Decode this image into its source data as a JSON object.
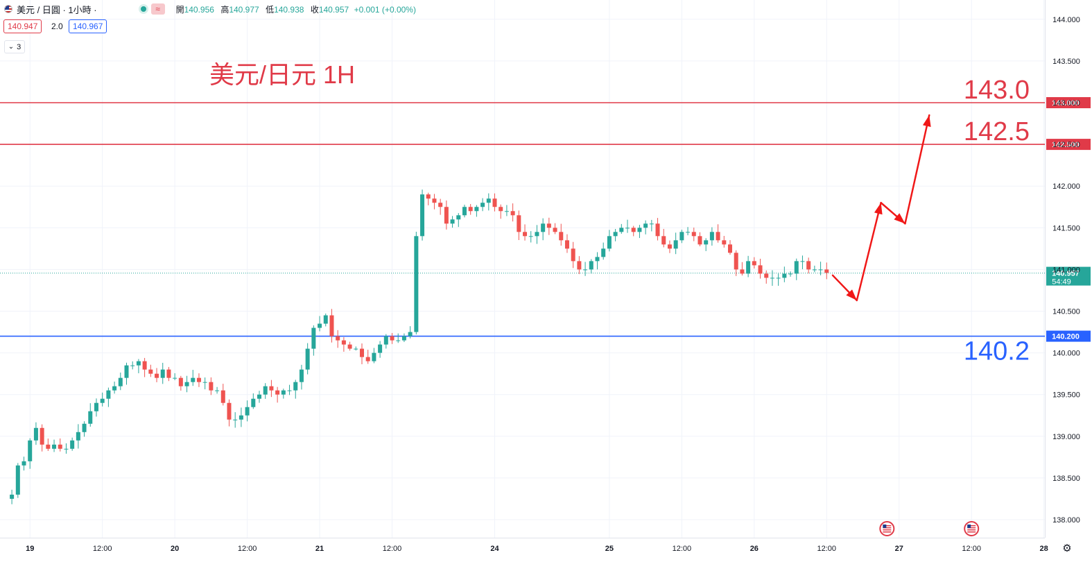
{
  "header": {
    "symbol": "美元 / 日圓 · 1小時 ·",
    "tilde": "≈",
    "ohlc": {
      "open_label": "開",
      "open": "140.956",
      "high_label": "高",
      "high": "140.977",
      "low_label": "低",
      "low": "140.938",
      "close_label": "收",
      "close": "140.957",
      "change": "+0.001 (+0.00%)"
    },
    "bid": "140.947",
    "spread": "2.0",
    "ask": "140.967",
    "indicator_count": "3",
    "chevron": "⌄"
  },
  "colors": {
    "up": "#26a69a",
    "down": "#ef5350",
    "resistance": "#e03a48",
    "support": "#2962ff",
    "arrow": "#f01818",
    "grid": "#f0f3fa"
  },
  "icons": {
    "flag": "us-flag-icon",
    "settings": "gear-icon"
  },
  "chart_data": {
    "type": "candlestick",
    "title": "美元/日元 1H",
    "ylim": [
      137.85,
      144.05
    ],
    "yticks": [
      "144.000",
      "143.500",
      "143.000",
      "142.500",
      "142.000",
      "141.500",
      "141.000",
      "140.500",
      "140.000",
      "139.500",
      "139.000",
      "138.500",
      "138.000"
    ],
    "x_labels": [
      {
        "label": "19",
        "bar": 4
      },
      {
        "label": "12:00",
        "bar": 16
      },
      {
        "label": "20",
        "bar": 28
      },
      {
        "label": "12:00",
        "bar": 40
      },
      {
        "label": "21",
        "bar": 52
      },
      {
        "label": "12:00",
        "bar": 64
      },
      {
        "label": "24",
        "bar": 81
      },
      {
        "label": "25",
        "bar": 100
      },
      {
        "label": "12:00",
        "bar": 112
      },
      {
        "label": "26",
        "bar": 124
      },
      {
        "label": "12:00",
        "bar": 136
      },
      {
        "label": "27",
        "bar": 148
      },
      {
        "label": "12:00",
        "bar": 160
      },
      {
        "label": "28",
        "bar": 172
      }
    ],
    "anchors": [
      [
        0,
        138.25
      ],
      [
        1,
        138.3
      ],
      [
        2,
        138.65
      ],
      [
        3,
        138.7
      ],
      [
        4,
        138.95
      ],
      [
        5,
        139.1
      ],
      [
        6,
        138.9
      ],
      [
        7,
        138.85
      ],
      [
        8,
        138.9
      ],
      [
        9,
        138.85
      ],
      [
        10,
        138.85
      ],
      [
        11,
        138.95
      ],
      [
        12,
        139.05
      ],
      [
        13,
        139.15
      ],
      [
        14,
        139.3
      ],
      [
        15,
        139.4
      ],
      [
        16,
        139.45
      ],
      [
        17,
        139.55
      ],
      [
        18,
        139.6
      ],
      [
        19,
        139.7
      ],
      [
        20,
        139.85
      ],
      [
        21,
        139.85
      ],
      [
        22,
        139.9
      ],
      [
        23,
        139.8
      ],
      [
        24,
        139.75
      ],
      [
        25,
        139.7
      ],
      [
        26,
        139.8
      ],
      [
        27,
        139.7
      ],
      [
        28,
        139.7
      ],
      [
        29,
        139.6
      ],
      [
        30,
        139.65
      ],
      [
        31,
        139.7
      ],
      [
        32,
        139.65
      ],
      [
        33,
        139.65
      ],
      [
        34,
        139.55
      ],
      [
        35,
        139.55
      ],
      [
        36,
        139.4
      ],
      [
        37,
        139.2
      ],
      [
        38,
        139.2
      ],
      [
        39,
        139.25
      ],
      [
        40,
        139.35
      ],
      [
        41,
        139.45
      ],
      [
        42,
        139.5
      ],
      [
        43,
        139.6
      ],
      [
        44,
        139.55
      ],
      [
        45,
        139.5
      ],
      [
        46,
        139.55
      ],
      [
        47,
        139.55
      ],
      [
        48,
        139.65
      ],
      [
        49,
        139.8
      ],
      [
        50,
        140.05
      ],
      [
        51,
        140.3
      ],
      [
        52,
        140.35
      ],
      [
        53,
        140.45
      ],
      [
        54,
        140.2
      ],
      [
        55,
        140.15
      ],
      [
        56,
        140.1
      ],
      [
        57,
        140.05
      ],
      [
        58,
        140.05
      ],
      [
        59,
        139.95
      ],
      [
        60,
        139.9
      ],
      [
        61,
        140.0
      ],
      [
        62,
        140.1
      ],
      [
        63,
        140.2
      ],
      [
        64,
        140.15
      ],
      [
        65,
        140.15
      ],
      [
        66,
        140.2
      ],
      [
        67,
        140.25
      ],
      [
        68,
        141.4
      ],
      [
        69,
        141.9
      ],
      [
        70,
        141.85
      ],
      [
        71,
        141.8
      ],
      [
        72,
        141.75
      ],
      [
        73,
        141.55
      ],
      [
        74,
        141.6
      ],
      [
        75,
        141.65
      ],
      [
        76,
        141.75
      ],
      [
        77,
        141.7
      ],
      [
        78,
        141.75
      ],
      [
        79,
        141.8
      ],
      [
        80,
        141.85
      ],
      [
        81,
        141.75
      ],
      [
        82,
        141.7
      ],
      [
        83,
        141.7
      ],
      [
        84,
        141.65
      ],
      [
        85,
        141.45
      ],
      [
        86,
        141.4
      ],
      [
        87,
        141.4
      ],
      [
        88,
        141.45
      ],
      [
        89,
        141.55
      ],
      [
        90,
        141.5
      ],
      [
        91,
        141.45
      ],
      [
        92,
        141.35
      ],
      [
        93,
        141.25
      ],
      [
        94,
        141.1
      ],
      [
        95,
        141.0
      ],
      [
        96,
        141.0
      ],
      [
        97,
        141.1
      ],
      [
        98,
        141.15
      ],
      [
        99,
        141.25
      ],
      [
        100,
        141.4
      ],
      [
        101,
        141.45
      ],
      [
        102,
        141.5
      ],
      [
        103,
        141.5
      ],
      [
        104,
        141.45
      ],
      [
        105,
        141.5
      ],
      [
        106,
        141.55
      ],
      [
        107,
        141.55
      ],
      [
        108,
        141.4
      ],
      [
        109,
        141.3
      ],
      [
        110,
        141.25
      ],
      [
        111,
        141.35
      ],
      [
        112,
        141.45
      ],
      [
        113,
        141.45
      ],
      [
        114,
        141.4
      ],
      [
        115,
        141.3
      ],
      [
        116,
        141.35
      ],
      [
        117,
        141.45
      ],
      [
        118,
        141.35
      ],
      [
        119,
        141.3
      ],
      [
        120,
        141.2
      ],
      [
        121,
        141.0
      ],
      [
        122,
        140.95
      ],
      [
        123,
        141.1
      ],
      [
        124,
        141.05
      ],
      [
        125,
        140.95
      ],
      [
        126,
        140.9
      ],
      [
        127,
        140.9
      ],
      [
        128,
        140.9
      ],
      [
        129,
        140.95
      ],
      [
        130,
        140.95
      ],
      [
        131,
        141.1
      ],
      [
        132,
        141.1
      ],
      [
        133,
        141.0
      ],
      [
        134,
        141.0
      ],
      [
        135,
        141.0
      ],
      [
        136,
        140.96
      ]
    ],
    "last_price": {
      "label": "140.957",
      "sub": "54:49",
      "value": 140.957
    },
    "levels": [
      {
        "value": 143.0,
        "axis_label": "143.000",
        "big_label": "143.0",
        "color": "#e03a48"
      },
      {
        "value": 142.5,
        "axis_label": "142.500",
        "big_label": "142.5",
        "color": "#e03a48"
      },
      {
        "value": 140.2,
        "axis_label": "140.200",
        "big_label": "140.2",
        "color": "#2962ff"
      }
    ],
    "projection": [
      [
        137,
        140.93
      ],
      [
        141,
        140.63
      ],
      [
        145,
        141.8
      ],
      [
        149,
        141.55
      ],
      [
        153,
        142.85
      ]
    ],
    "event_flag_bars": [
      146,
      160
    ]
  }
}
